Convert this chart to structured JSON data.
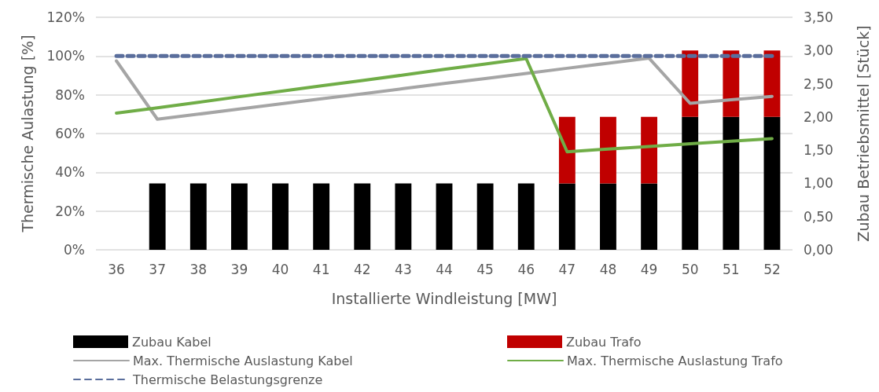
{
  "chart_data": {
    "type": "bar",
    "xlabel": "Installierte Windleistung [MW]",
    "ylabel": "Thermische Aulastung [%]",
    "y2label": "Zubau Betriebsmittel [Stück]",
    "categories": [
      "36",
      "37",
      "38",
      "39",
      "40",
      "41",
      "42",
      "43",
      "44",
      "45",
      "46",
      "47",
      "48",
      "49",
      "50",
      "51",
      "52"
    ],
    "stacked": true,
    "grid": "y",
    "legend": "bottom",
    "marker": "none",
    "ylim": [
      0,
      120
    ],
    "yticks": [
      {
        "value": 0,
        "label": "0%"
      },
      {
        "value": 20,
        "label": "20%"
      },
      {
        "value": 40,
        "label": "40%"
      },
      {
        "value": 60,
        "label": "60%"
      },
      {
        "value": 80,
        "label": "80%"
      },
      {
        "value": 100,
        "label": "100%"
      },
      {
        "value": 120,
        "label": "120%"
      }
    ],
    "y2lim": [
      0,
      3.5
    ],
    "y2ticks": [
      {
        "value": 0,
        "label": "0,00"
      },
      {
        "value": 0.5,
        "label": "0,50"
      },
      {
        "value": 1,
        "label": "1,00"
      },
      {
        "value": 1.5,
        "label": "1,50"
      },
      {
        "value": 2,
        "label": "2,00"
      },
      {
        "value": 2.5,
        "label": "2,50"
      },
      {
        "value": 3,
        "label": "3,00"
      },
      {
        "value": 3.5,
        "label": "3,50"
      }
    ],
    "series": [
      {
        "name": "Zubau Kabel",
        "axis": "y2",
        "color": "#000000",
        "values": [
          0,
          1,
          1,
          1,
          1,
          1,
          1,
          1,
          1,
          1,
          1,
          1,
          1,
          1,
          2,
          2,
          2
        ]
      },
      {
        "name": "Zubau Trafo",
        "axis": "y2",
        "color": "#c00000",
        "values": [
          0,
          0,
          0,
          0,
          0,
          0,
          0,
          0,
          0,
          0,
          0,
          1,
          1,
          1,
          1,
          1,
          1
        ]
      },
      {
        "name": "Max. Thermische Auslastung Kabel",
        "type": "line",
        "line_style": "solid",
        "color": "#a5a5a5",
        "values": [
          97.5,
          67.4,
          70.0,
          72.7,
          75.3,
          77.9,
          80.5,
          83.2,
          85.8,
          88.4,
          91.0,
          93.7,
          96.3,
          98.9,
          75.6,
          77.4,
          79.2
        ]
      },
      {
        "name": "Max. Thermische Auslastung Trafo",
        "type": "line",
        "line_style": "solid",
        "color": "#70ad47",
        "values": [
          70.5,
          73.3,
          76.1,
          79.0,
          81.8,
          84.6,
          87.4,
          90.2,
          93.1,
          95.9,
          98.7,
          50.6,
          52.0,
          53.3,
          54.7,
          56.0,
          57.4
        ]
      },
      {
        "name": "Thermische Belastungsgrenze",
        "type": "line",
        "line_style": "dashed",
        "color": "#5a6e9c",
        "values": [
          100,
          100,
          100,
          100,
          100,
          100,
          100,
          100,
          100,
          100,
          100,
          100,
          100,
          100,
          100,
          100,
          100
        ]
      }
    ]
  }
}
